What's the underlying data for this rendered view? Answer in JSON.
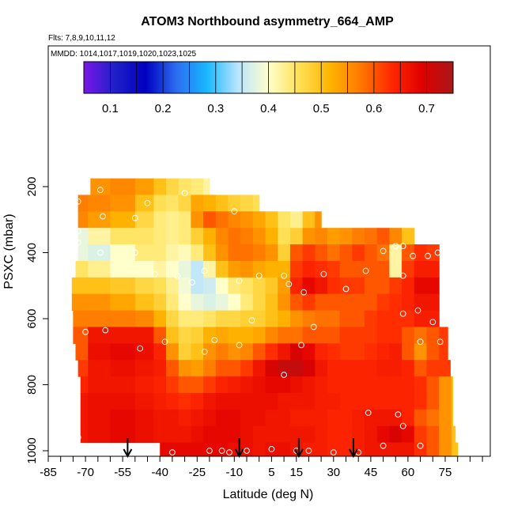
{
  "chart_data": {
    "type": "heatmap",
    "title": "ATOM3 Northbound asymmetry_664_AMP",
    "flights_label": "Flts: 7,8,9,10,11,12",
    "dates_label": "MMDD: 1014,1017,1019,1020,1023,1025",
    "xlabel": "Latitude (deg N)",
    "ylabel": "PSXC (mbar)",
    "xlim": [
      -85,
      90
    ],
    "ylim": [
      1010,
      0
    ],
    "x_ticks": [
      -85,
      -70,
      -55,
      -40,
      -25,
      -10,
      5,
      15,
      30,
      45,
      60,
      75
    ],
    "y_ticks": [
      200,
      400,
      600,
      800,
      1000
    ],
    "colorbar": {
      "range": [
        0.05,
        0.75
      ],
      "ticks": [
        0.1,
        0.2,
        0.3,
        0.4,
        0.5,
        0.6,
        0.7
      ],
      "colors": [
        "#7a17e8",
        "#2020c8",
        "#0000c0",
        "#2b6cf0",
        "#18b8ff",
        "#b8e4ff",
        "#ffffcc",
        "#ffe055",
        "#ffb400",
        "#ff7800",
        "#ff2800",
        "#e00000",
        "#a81818"
      ]
    },
    "heatmap_lats": [
      -73,
      -65,
      -55,
      -45,
      -40,
      -35,
      -30,
      -25,
      -20,
      -15,
      -10,
      -5,
      0,
      5,
      10,
      15,
      20,
      25,
      30,
      35,
      40,
      45,
      50,
      55,
      60,
      65,
      70,
      75,
      80
    ],
    "heatmap_levels": [
      {
        "p": 200,
        "lat_range": [
          -68,
          -20
        ],
        "values": [
          0.55,
          0.55,
          0.56,
          0.54,
          0.5,
          0.47,
          0.45,
          0.44,
          0.42,
          null,
          null,
          null,
          null,
          null,
          null,
          null,
          null,
          null,
          null,
          null,
          null,
          null,
          null,
          null,
          null,
          null,
          null,
          null,
          null
        ]
      },
      {
        "p": 250,
        "lat_range": [
          -73,
          0
        ],
        "values": [
          0.57,
          0.56,
          0.55,
          0.5,
          0.46,
          0.45,
          0.47,
          0.53,
          0.52,
          0.5,
          0.48,
          0.47,
          0.46,
          null,
          null,
          null,
          null,
          null,
          null,
          null,
          null,
          null,
          null,
          null,
          null,
          null,
          null,
          null,
          null
        ]
      },
      {
        "p": 300,
        "lat_range": [
          -73,
          25
        ],
        "values": [
          0.56,
          0.54,
          0.52,
          0.47,
          0.44,
          0.43,
          0.44,
          0.55,
          0.6,
          0.58,
          0.56,
          0.55,
          0.53,
          0.5,
          0.45,
          0.43,
          0.5,
          0.55,
          0.52,
          null,
          null,
          null,
          null,
          null,
          null,
          null,
          null,
          null,
          null
        ]
      },
      {
        "p": 350,
        "lat_range": [
          -73,
          66
        ],
        "values": [
          0.38,
          0.42,
          0.45,
          0.45,
          0.44,
          0.43,
          0.44,
          0.48,
          0.52,
          0.56,
          0.58,
          0.57,
          0.55,
          0.52,
          0.46,
          0.48,
          0.55,
          0.56,
          0.54,
          0.55,
          0.57,
          0.58,
          0.6,
          0.56,
          0.5,
          null,
          null,
          null,
          null
        ]
      },
      {
        "p": 400,
        "lat_range": [
          -73,
          74
        ],
        "values": [
          0.38,
          0.37,
          0.4,
          0.44,
          0.44,
          0.42,
          0.41,
          0.44,
          0.5,
          0.55,
          0.58,
          0.58,
          0.57,
          0.55,
          0.48,
          0.6,
          0.62,
          0.6,
          0.58,
          0.6,
          0.62,
          0.6,
          0.58,
          0.42,
          0.6,
          0.63,
          0.62,
          null,
          null
        ]
      },
      {
        "p": 450,
        "lat_range": [
          -74,
          74
        ],
        "values": [
          0.45,
          0.43,
          0.4,
          0.4,
          0.42,
          0.4,
          0.38,
          0.35,
          0.42,
          0.5,
          0.54,
          0.55,
          0.53,
          0.52,
          0.52,
          0.62,
          0.64,
          0.63,
          0.62,
          0.6,
          0.6,
          0.6,
          0.6,
          0.42,
          0.62,
          0.65,
          0.65,
          null,
          null
        ]
      },
      {
        "p": 500,
        "lat_range": [
          -76,
          74
        ],
        "values": [
          0.5,
          0.5,
          0.49,
          0.47,
          0.46,
          0.43,
          0.39,
          0.35,
          0.36,
          0.4,
          0.44,
          0.45,
          0.47,
          0.49,
          0.54,
          0.64,
          0.68,
          0.66,
          0.63,
          0.62,
          0.62,
          0.6,
          0.6,
          0.62,
          0.64,
          0.68,
          0.68,
          null,
          null
        ]
      },
      {
        "p": 550,
        "lat_range": [
          -76,
          75
        ],
        "values": [
          0.55,
          0.55,
          0.53,
          0.5,
          0.48,
          0.44,
          0.4,
          0.38,
          0.37,
          0.38,
          0.4,
          0.44,
          0.47,
          0.5,
          0.55,
          0.6,
          0.62,
          0.6,
          0.6,
          0.6,
          0.6,
          0.6,
          0.62,
          0.63,
          0.64,
          0.66,
          0.66,
          null,
          null
        ]
      },
      {
        "p": 600,
        "lat_range": [
          -75,
          75
        ],
        "values": [
          0.57,
          0.57,
          0.57,
          0.56,
          0.52,
          0.47,
          0.44,
          0.44,
          0.45,
          0.47,
          0.47,
          0.48,
          0.48,
          0.5,
          0.52,
          0.55,
          0.57,
          0.58,
          0.58,
          0.6,
          0.6,
          0.62,
          0.63,
          0.63,
          0.63,
          0.65,
          0.65,
          null,
          null
        ]
      },
      {
        "p": 650,
        "lat_range": [
          -75,
          76
        ],
        "values": [
          0.6,
          0.66,
          0.66,
          0.66,
          0.6,
          0.5,
          0.47,
          0.48,
          0.52,
          0.53,
          0.52,
          0.52,
          0.53,
          0.56,
          0.58,
          0.58,
          0.6,
          0.6,
          0.6,
          0.62,
          0.62,
          0.62,
          0.63,
          0.63,
          0.6,
          0.58,
          0.6,
          0.62,
          null
        ]
      },
      {
        "p": 700,
        "lat_range": [
          -74,
          76
        ],
        "values": [
          0.6,
          0.67,
          0.68,
          0.67,
          0.64,
          0.55,
          0.48,
          0.5,
          0.55,
          0.57,
          0.55,
          0.56,
          0.6,
          0.63,
          0.66,
          0.7,
          0.68,
          0.64,
          0.63,
          0.62,
          0.62,
          0.63,
          0.64,
          0.65,
          0.6,
          0.55,
          0.6,
          0.62,
          null
        ]
      },
      {
        "p": 750,
        "lat_range": [
          -73,
          77
        ],
        "values": [
          0.62,
          0.66,
          0.67,
          0.66,
          0.65,
          0.6,
          0.55,
          0.54,
          0.57,
          0.6,
          0.6,
          0.62,
          0.66,
          0.7,
          0.72,
          0.72,
          0.7,
          0.66,
          0.64,
          0.64,
          0.64,
          0.64,
          0.65,
          0.65,
          0.64,
          0.6,
          0.62,
          0.62,
          0.5
        ]
      },
      {
        "p": 800,
        "lat_range": [
          -72,
          78
        ],
        "values": [
          0.64,
          0.66,
          0.66,
          0.65,
          0.64,
          0.62,
          0.6,
          0.6,
          0.62,
          0.64,
          0.65,
          0.66,
          0.67,
          0.68,
          0.68,
          0.67,
          0.66,
          0.65,
          0.64,
          0.64,
          0.64,
          0.64,
          0.64,
          0.64,
          0.64,
          0.63,
          0.6,
          0.55,
          0.5
        ]
      },
      {
        "p": 850,
        "lat_range": [
          -72,
          78
        ],
        "values": [
          0.66,
          0.67,
          0.67,
          0.66,
          0.65,
          0.64,
          0.63,
          0.64,
          0.66,
          0.67,
          0.67,
          0.67,
          0.67,
          0.67,
          0.66,
          0.66,
          0.66,
          0.65,
          0.65,
          0.64,
          0.64,
          0.64,
          0.64,
          0.64,
          0.64,
          0.63,
          0.6,
          0.55,
          0.5
        ]
      },
      {
        "p": 900,
        "lat_range": [
          -72,
          78
        ],
        "values": [
          0.66,
          0.67,
          0.68,
          0.67,
          0.66,
          0.66,
          0.65,
          0.66,
          0.67,
          0.68,
          0.68,
          0.67,
          0.67,
          0.66,
          0.66,
          0.65,
          0.65,
          0.65,
          0.64,
          0.64,
          0.65,
          0.66,
          0.66,
          0.66,
          0.64,
          0.6,
          0.58,
          0.55,
          0.5
        ]
      },
      {
        "p": 950,
        "lat_range": [
          -72,
          79
        ],
        "values": [
          0.66,
          0.67,
          0.68,
          0.67,
          0.66,
          0.66,
          0.66,
          0.67,
          0.68,
          0.68,
          0.68,
          0.67,
          0.66,
          0.66,
          0.66,
          0.66,
          0.66,
          0.65,
          0.64,
          0.64,
          0.65,
          0.66,
          0.68,
          0.7,
          0.68,
          0.62,
          0.6,
          0.55,
          0.5
        ]
      },
      {
        "p": 1000,
        "lat_range": [
          -40,
          80
        ],
        "values": [
          null,
          null,
          null,
          null,
          0.68,
          0.68,
          0.68,
          0.68,
          0.68,
          0.68,
          0.67,
          0.67,
          0.66,
          0.67,
          0.67,
          0.66,
          0.65,
          0.65,
          0.64,
          0.64,
          0.65,
          0.66,
          0.66,
          0.66,
          0.66,
          0.63,
          0.6,
          0.55,
          0.5
        ]
      }
    ],
    "observations": [
      [
        -64,
        210
      ],
      [
        -30,
        220
      ],
      [
        -45,
        250
      ],
      [
        -73,
        245
      ],
      [
        -63,
        290
      ],
      [
        -50,
        295
      ],
      [
        -10,
        275
      ],
      [
        -73,
        335
      ],
      [
        -73,
        370
      ],
      [
        -64,
        400
      ],
      [
        -50,
        400
      ],
      [
        -42,
        465
      ],
      [
        -33,
        470
      ],
      [
        -22,
        455
      ],
      [
        -27,
        490
      ],
      [
        -8,
        485
      ],
      [
        0,
        470
      ],
      [
        10,
        470
      ],
      [
        12,
        495
      ],
      [
        18,
        520
      ],
      [
        26,
        465
      ],
      [
        35,
        510
      ],
      [
        43,
        455
      ],
      [
        50,
        395
      ],
      [
        55,
        380
      ],
      [
        58,
        380
      ],
      [
        62,
        410
      ],
      [
        68,
        410
      ],
      [
        72,
        400
      ],
      [
        58,
        470
      ],
      [
        64,
        575
      ],
      [
        58,
        585
      ],
      [
        70,
        610
      ],
      [
        -3,
        605
      ],
      [
        -70,
        640
      ],
      [
        -62,
        635
      ],
      [
        -48,
        690
      ],
      [
        -38,
        670
      ],
      [
        -22,
        700
      ],
      [
        -18,
        665
      ],
      [
        -8,
        680
      ],
      [
        17,
        680
      ],
      [
        22,
        625
      ],
      [
        65,
        670
      ],
      [
        73,
        670
      ],
      [
        10,
        770
      ],
      [
        44,
        885
      ],
      [
        56,
        890
      ],
      [
        -73,
        960
      ],
      [
        -42,
        1005
      ],
      [
        -35,
        1005
      ],
      [
        -20,
        1000
      ],
      [
        -15,
        1000
      ],
      [
        -12,
        1005
      ],
      [
        -5,
        1000
      ],
      [
        5,
        995
      ],
      [
        15,
        1000
      ],
      [
        20,
        1000
      ],
      [
        30,
        1005
      ],
      [
        40,
        1005
      ],
      [
        50,
        985
      ],
      [
        58,
        925
      ],
      [
        65,
        985
      ]
    ],
    "arrows_lat": [
      -53,
      -8,
      16,
      38
    ]
  }
}
